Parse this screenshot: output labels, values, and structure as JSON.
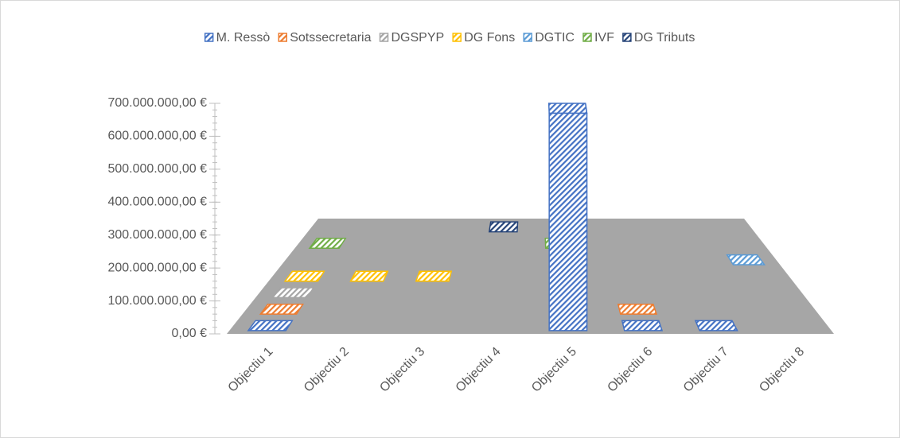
{
  "chart_data": {
    "type": "bar3d",
    "categories": [
      "Objectiu 1",
      "Objectiu 2",
      "Objectiu 3",
      "Objectiu 4",
      "Objectiu 5",
      "Objectiu 6",
      "Objectiu 7",
      "Objectiu 8"
    ],
    "series": [
      {
        "name": "M. Ressò",
        "color": "#4472c4",
        "values": [
          0,
          null,
          null,
          null,
          660000000,
          0,
          0,
          null
        ]
      },
      {
        "name": "Sotssecretaria",
        "color": "#ed7d31",
        "values": [
          0,
          null,
          null,
          null,
          null,
          0,
          null,
          null
        ]
      },
      {
        "name": "DGSPYP",
        "color": "#a5a5a5",
        "values": [
          0,
          null,
          null,
          null,
          null,
          null,
          null,
          null
        ]
      },
      {
        "name": "DG Fons",
        "color": "#ffc000",
        "values": [
          0,
          0,
          0,
          null,
          null,
          null,
          null,
          null
        ]
      },
      {
        "name": "DGTIC",
        "color": "#5b9bd5",
        "values": [
          null,
          null,
          null,
          null,
          null,
          null,
          null,
          0
        ]
      },
      {
        "name": "IVF",
        "color": "#70ad47",
        "values": [
          0,
          null,
          null,
          null,
          0,
          null,
          null,
          null
        ]
      },
      {
        "name": "DG Tributs",
        "color": "#264478",
        "values": [
          null,
          null,
          null,
          0,
          null,
          null,
          null,
          null
        ]
      }
    ],
    "ylim": [
      0,
      700000000
    ],
    "yticks": [
      {
        "value": 0,
        "label": "0,00 €"
      },
      {
        "value": 100000000,
        "label": "100.000.000,00 €"
      },
      {
        "value": 200000000,
        "label": "200.000.000,00 €"
      },
      {
        "value": 300000000,
        "label": "300.000.000,00 €"
      },
      {
        "value": 400000000,
        "label": "400.000.000,00 €"
      },
      {
        "value": 500000000,
        "label": "500.000.000,00 €"
      },
      {
        "value": 600000000,
        "label": "600.000.000,00 €"
      },
      {
        "value": 700000000,
        "label": "700.000.000,00 €"
      }
    ],
    "legend": "top"
  }
}
